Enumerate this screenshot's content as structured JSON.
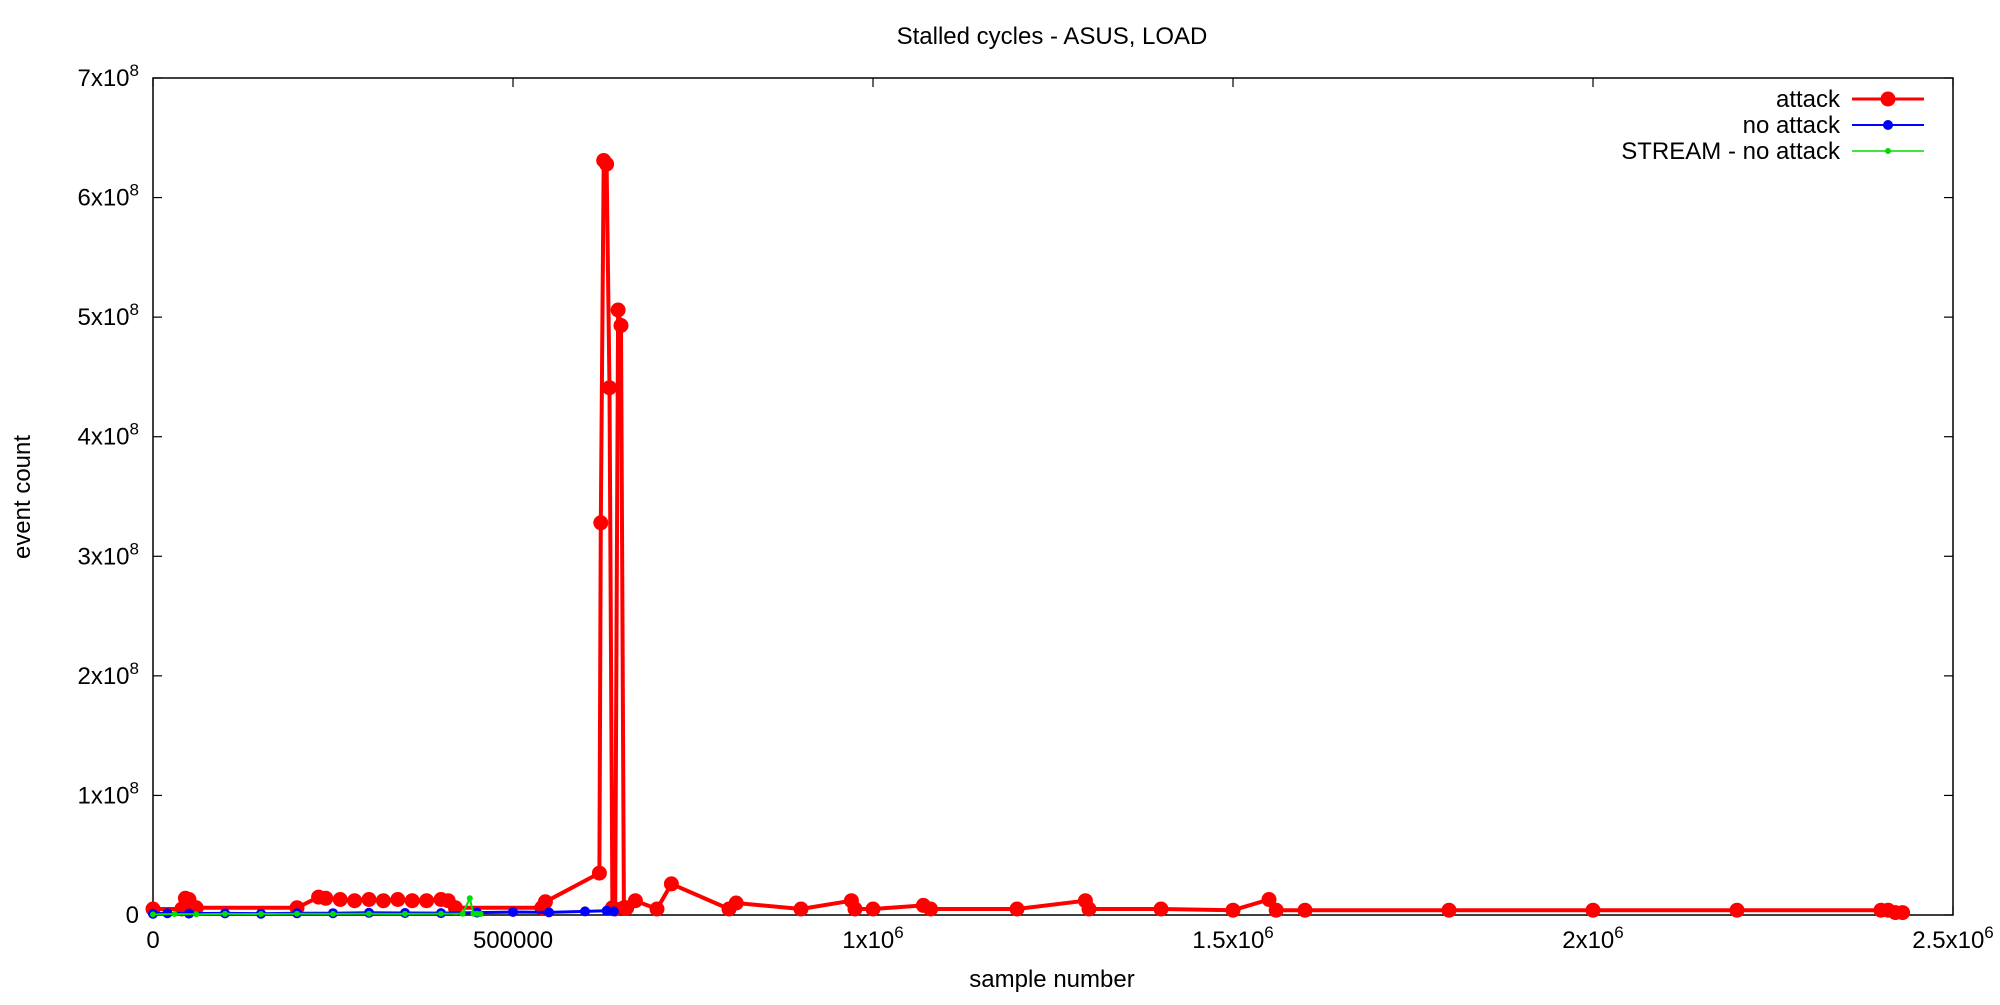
{
  "chart_data": {
    "type": "line",
    "title": "Stalled cycles - ASUS, LOAD",
    "xlabel": "sample number",
    "ylabel": "event count",
    "xlim": [
      0,
      2500000
    ],
    "ylim": [
      0,
      700000000
    ],
    "x_ticks": [
      {
        "value": 0,
        "label": "0",
        "sup": ""
      },
      {
        "value": 500000,
        "label": "500000",
        "sup": ""
      },
      {
        "value": 1000000,
        "label": "1x10",
        "sup": "6"
      },
      {
        "value": 1500000,
        "label": "1.5x10",
        "sup": "6"
      },
      {
        "value": 2000000,
        "label": "2x10",
        "sup": "6"
      },
      {
        "value": 2500000,
        "label": "2.5x10",
        "sup": "6"
      }
    ],
    "y_ticks": [
      {
        "value": 0,
        "label": "0",
        "sup": ""
      },
      {
        "value": 100000000,
        "label": "1x10",
        "sup": "8"
      },
      {
        "value": 200000000,
        "label": "2x10",
        "sup": "8"
      },
      {
        "value": 300000000,
        "label": "3x10",
        "sup": "8"
      },
      {
        "value": 400000000,
        "label": "4x10",
        "sup": "8"
      },
      {
        "value": 500000000,
        "label": "5x10",
        "sup": "8"
      },
      {
        "value": 600000000,
        "label": "6x10",
        "sup": "8"
      },
      {
        "value": 700000000,
        "label": "7x10",
        "sup": "8"
      }
    ],
    "grid": false,
    "legend_position": "top-right",
    "series": [
      {
        "name": "attack",
        "color": "#ff0000",
        "style": "linespoints-large",
        "x": [
          0,
          40000,
          45000,
          50000,
          60000,
          200000,
          230000,
          240000,
          260000,
          280000,
          300000,
          320000,
          340000,
          360000,
          380000,
          400000,
          410000,
          420000,
          540000,
          545000,
          620000,
          622000,
          626000,
          630000,
          634000,
          638000,
          642000,
          646000,
          650000,
          654000,
          658000,
          670000,
          700000,
          720000,
          800000,
          810000,
          900000,
          970000,
          975000,
          1000000,
          1070000,
          1080000,
          1200000,
          1295000,
          1300000,
          1400000,
          1500000,
          1550000,
          1560000,
          1600000,
          1800000,
          2000000,
          2200000,
          2400000,
          2410000,
          2420000,
          2430000
        ],
        "y": [
          5000000,
          5000000,
          14000000,
          13000000,
          6000000,
          6000000,
          15000000,
          14000000,
          13000000,
          12000000,
          13000000,
          12000000,
          13000000,
          12000000,
          12000000,
          13000000,
          12000000,
          6000000,
          6000000,
          11000000,
          35000000,
          328000000,
          631000000,
          628000000,
          441000000,
          6000000,
          5000000,
          506000000,
          493000000,
          6000000,
          6000000,
          12000000,
          5000000,
          26000000,
          5000000,
          10000000,
          5000000,
          12000000,
          5000000,
          5000000,
          8000000,
          5000000,
          5000000,
          12000000,
          5000000,
          5000000,
          4000000,
          13000000,
          4000000,
          4000000,
          4000000,
          4000000,
          4000000,
          4000000,
          4000000,
          2000000,
          2000000
        ]
      },
      {
        "name": "no attack",
        "color": "#0000ff",
        "style": "linespoints-medium",
        "x": [
          0,
          20000,
          50000,
          100000,
          150000,
          200000,
          250000,
          300000,
          350000,
          400000,
          450000,
          500000,
          550000,
          600000,
          630000,
          640000
        ],
        "y": [
          1000000,
          1500000,
          1200000,
          1300000,
          1100000,
          1400000,
          1500000,
          1800000,
          1700000,
          1600000,
          2000000,
          2500000,
          2200000,
          3000000,
          3500000,
          3000000
        ]
      },
      {
        "name": "STREAM - no attack",
        "color": "#00dd00",
        "style": "linespoints-small",
        "x": [
          0,
          30000,
          60000,
          100000,
          150000,
          200000,
          250000,
          300000,
          350000,
          400000,
          430000,
          440000,
          445000,
          450000,
          455000
        ],
        "y": [
          500000,
          800000,
          700000,
          900000,
          800000,
          1000000,
          900000,
          1000000,
          900000,
          1100000,
          1000000,
          14000000,
          1200000,
          1000000,
          800000
        ]
      }
    ]
  }
}
